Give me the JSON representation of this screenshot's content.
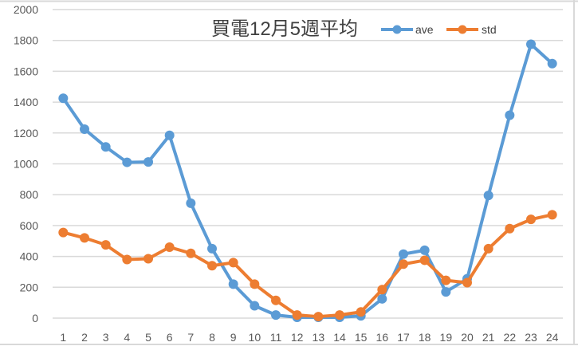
{
  "chart_data": {
    "type": "line",
    "title": "買電12月5週平均",
    "xlabel": "",
    "ylabel": "",
    "categories": [
      "1",
      "2",
      "3",
      "4",
      "5",
      "6",
      "7",
      "8",
      "9",
      "10",
      "11",
      "12",
      "13",
      "14",
      "15",
      "16",
      "17",
      "18",
      "19",
      "20",
      "21",
      "22",
      "23",
      "24"
    ],
    "series": [
      {
        "name": "ave",
        "color": "#5B9BD5",
        "values": [
          1425,
          1225,
          1110,
          1010,
          1012,
          1185,
          745,
          450,
          220,
          80,
          20,
          5,
          5,
          5,
          15,
          125,
          415,
          440,
          170,
          255,
          795,
          1315,
          1775,
          1650
        ]
      },
      {
        "name": "std",
        "color": "#ED7D31",
        "values": [
          555,
          520,
          475,
          380,
          385,
          460,
          420,
          340,
          360,
          220,
          115,
          20,
          10,
          20,
          40,
          185,
          350,
          375,
          245,
          230,
          450,
          580,
          640,
          670
        ]
      }
    ],
    "ylim": [
      0,
      2000
    ],
    "yticks": [
      0,
      200,
      400,
      600,
      800,
      1000,
      1200,
      1400,
      1600,
      1800,
      2000
    ],
    "grid": true,
    "legend_position": "top-right"
  }
}
